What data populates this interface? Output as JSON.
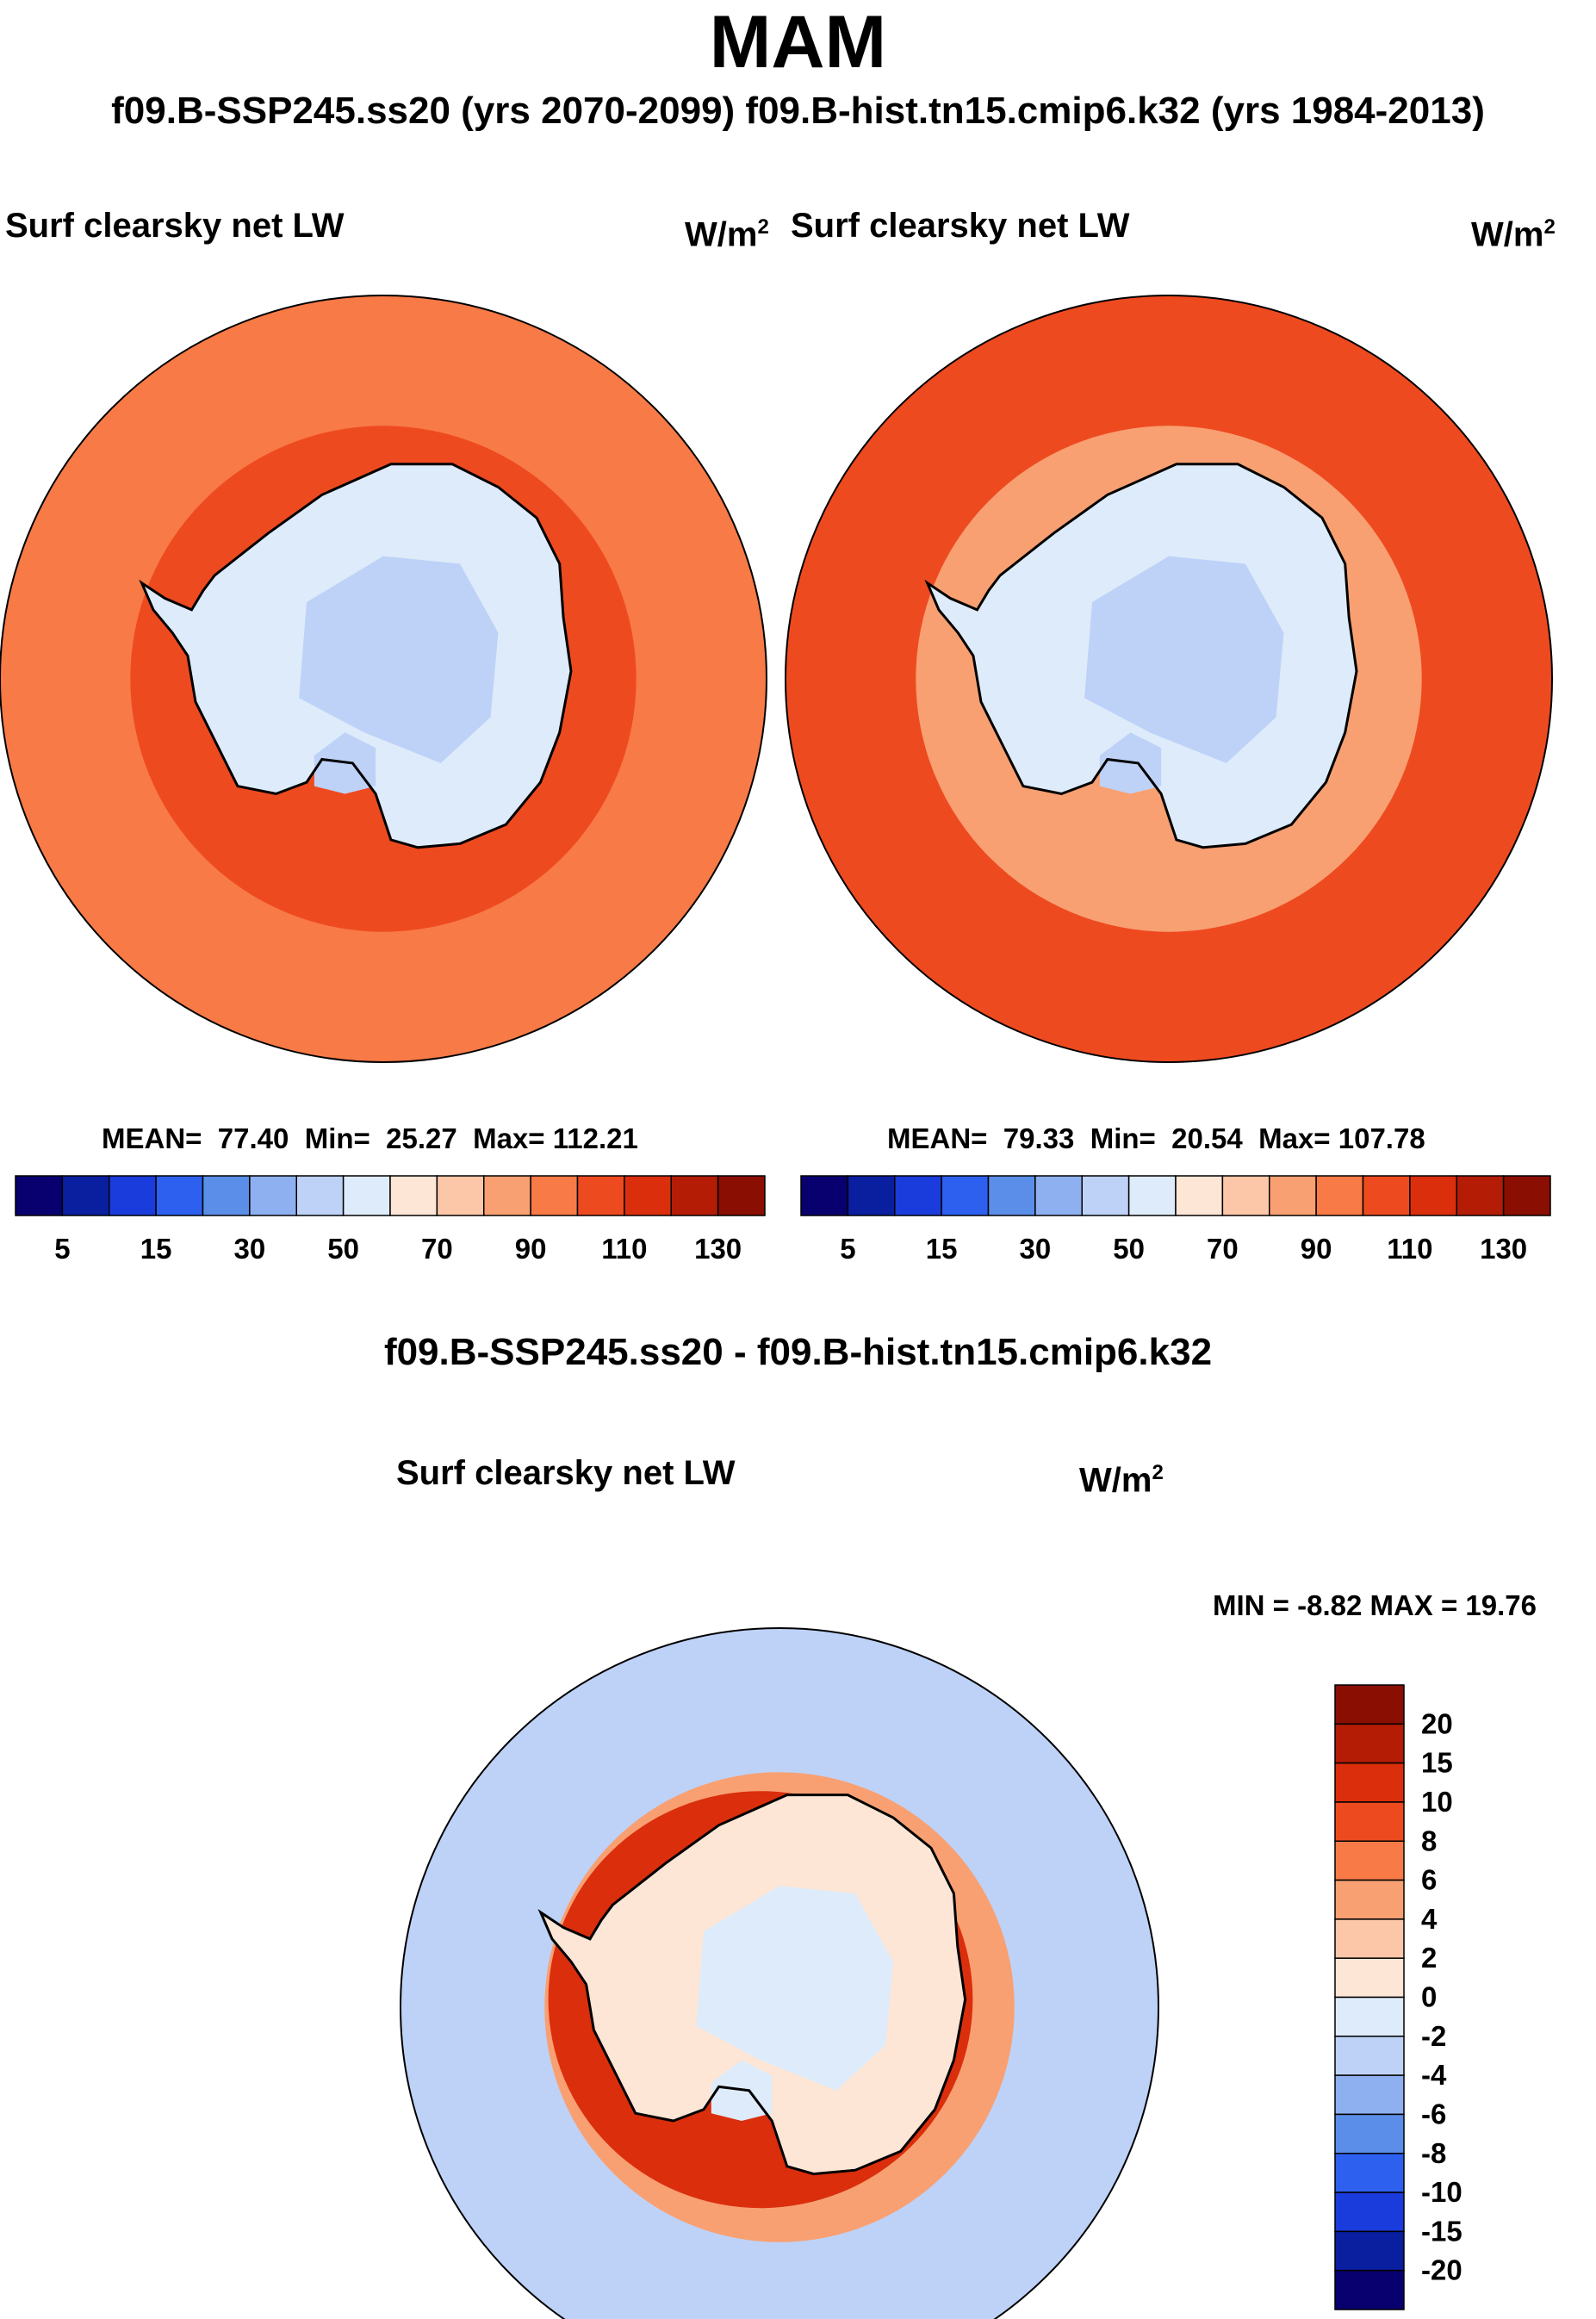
{
  "figure": {
    "title": "MAM",
    "subtitle": "f09.B-SSP245.ss20 (yrs 2070-2099)  f09.B-hist.tn15.cmip6.k32 (yrs 1984-2013)",
    "diff_title": "f09.B-SSP245.ss20 - f09.B-hist.tn15.cmip6.k32"
  },
  "colors": {
    "abs": [
      "#08006e",
      "#0a1ea0",
      "#1a3cdc",
      "#2d60ef",
      "#5b8ee8",
      "#8fb0f0",
      "#bed2f8",
      "#deebfa",
      "#fde6d5",
      "#fcc6a8",
      "#f8a072",
      "#f87a46",
      "#ee4a20",
      "#da2e0c",
      "#b41c06",
      "#8a0e02"
    ],
    "diff": [
      "#08006e",
      "#0a1ea0",
      "#1a3cdc",
      "#2d60ef",
      "#5b8ee8",
      "#8fb0f0",
      "#bed2f8",
      "#deebfa",
      "#fde6d5",
      "#fcc6a8",
      "#f8a072",
      "#f87a46",
      "#ee4a20",
      "#da2e0c",
      "#b41c06",
      "#8a0e02"
    ],
    "coast": "#000000"
  },
  "chart_data": [
    {
      "type": "heatmap",
      "name": "left-panel",
      "projection": "south polar stereographic",
      "field_label": "Surf clearsky net LW",
      "units_base": "W/m",
      "units_exp": "2",
      "mean_label": "MEAN=",
      "mean": "77.40",
      "min_label": "Min=",
      "min": "25.27",
      "max_label": "Max=",
      "max": "112.21",
      "colorbar_levels": [
        0,
        5,
        10,
        15,
        20,
        30,
        40,
        50,
        60,
        70,
        80,
        90,
        100,
        110,
        120,
        130
      ],
      "colorbar_tick_labels": [
        "5",
        "15",
        "30",
        "50",
        "70",
        "90",
        "110",
        "130"
      ],
      "orientation": "horizontal",
      "regions": {
        "ocean": 80,
        "coast": 90,
        "antarctica": 45,
        "interior": 35
      }
    },
    {
      "type": "heatmap",
      "name": "right-panel",
      "projection": "south polar stereographic",
      "field_label": "Surf clearsky net LW",
      "units_base": "W/m",
      "units_exp": "2",
      "mean_label": "MEAN=",
      "mean": "79.33",
      "min_label": "Min=",
      "min": "20.54",
      "max_label": "Max=",
      "max": "107.78",
      "colorbar_levels": [
        0,
        5,
        10,
        15,
        20,
        30,
        40,
        50,
        60,
        70,
        80,
        90,
        100,
        110,
        120,
        130
      ],
      "colorbar_tick_labels": [
        "5",
        "15",
        "30",
        "50",
        "70",
        "90",
        "110",
        "130"
      ],
      "orientation": "horizontal",
      "regions": {
        "ocean": 90,
        "coast": 75,
        "antarctica": 45,
        "interior": 35
      }
    },
    {
      "type": "heatmap",
      "name": "difference-panel",
      "projection": "south polar stereographic",
      "field_label": "Surf clearsky net LW",
      "units_base": "W/m",
      "units_exp": "2",
      "stats_label": "MIN =  -8.82 MAX =  19.76",
      "min": "-8.82",
      "max": "19.76",
      "colorbar_levels": [
        -20,
        -15,
        -10,
        -8,
        -6,
        -4,
        -2,
        0,
        2,
        4,
        6,
        8,
        10,
        15,
        20
      ],
      "colorbar_tick_labels": [
        "20",
        "15",
        "10",
        "8",
        "6",
        "4",
        "2",
        "0",
        "-2",
        "-4",
        "-6",
        "-8",
        "-10",
        "-15",
        "-20"
      ],
      "orientation": "vertical",
      "regions": {
        "ocean": -4,
        "coast_ring": 12,
        "antarctica": 1,
        "interior": -1
      }
    }
  ]
}
